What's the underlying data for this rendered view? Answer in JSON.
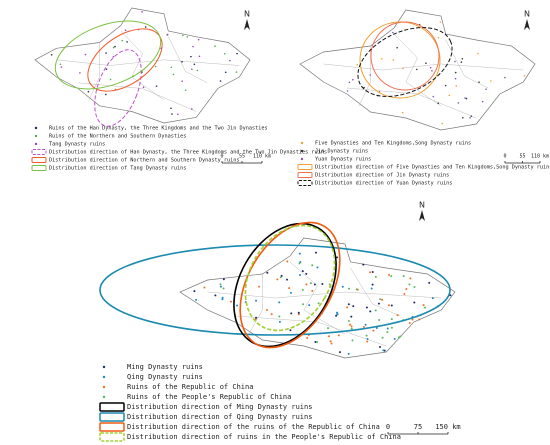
{
  "panels": [
    {
      "north": "N",
      "scale": [
        "0",
        "55",
        "110 km"
      ],
      "legend": [
        {
          "label": "Ruins of the Han Dynasty, the Three Kingdoms and the Two Jin Dynasties",
          "color": "#1f2a5a",
          "kind": "point"
        },
        {
          "label": "Ruins of the Northern and Southern Dynasties",
          "color": "#4caf50",
          "kind": "point"
        },
        {
          "label": "Tang Dynasty ruins",
          "color": "#9c3fbf",
          "kind": "point"
        },
        {
          "label": "Distribution direction of Han Dynasty, the Three Kingdoms and the Two Jin Dynasties ruins",
          "color": "#c050d0",
          "kind": "ellipse",
          "dashed": true
        },
        {
          "label": "Distribution direction of Northern and Southern Dynasty ruins",
          "color": "#f05a28",
          "kind": "ellipse",
          "dashed": false
        },
        {
          "label": "Distribution direction of Tang Dynasty ruins",
          "color": "#7cc242",
          "kind": "ellipse",
          "dashed": false
        }
      ]
    },
    {
      "north": "N",
      "scale": [
        "0",
        "55",
        "110 km"
      ],
      "legend": [
        {
          "label": "Five Dynasties and Ten Kingdoms,Song Dynasty ruins",
          "color": "#f0a030",
          "kind": "point"
        },
        {
          "label": "Jin Dynasty ruins",
          "color": "#333333",
          "kind": "point"
        },
        {
          "label": "Yuan Dynasty ruins",
          "color": "#8a4fb0",
          "kind": "point"
        },
        {
          "label": "Distribution direction of Five Dynasties and Ten Kingdoms,Song Dynasty ruins",
          "color": "#f0a030",
          "kind": "ellipse",
          "dashed": false
        },
        {
          "label": "Distribution direction of Jin Dynasty ruins",
          "color": "#f07050",
          "kind": "ellipse",
          "dashed": false
        },
        {
          "label": "Distribution direction of Yuan Dynasty ruins",
          "color": "#111111",
          "kind": "ellipse",
          "dashed": true
        }
      ]
    },
    {
      "north": "N",
      "scale": [
        "0",
        "75",
        "150 km"
      ],
      "legend": [
        {
          "label": "Ming Dynasty ruins",
          "color": "#1a2b6b",
          "kind": "point"
        },
        {
          "label": "Qing Dynasty ruins",
          "color": "#1e88c8",
          "kind": "point"
        },
        {
          "label": "Ruins of the Republic of China",
          "color": "#f07020",
          "kind": "point"
        },
        {
          "label": "Ruins of the People's Republic of China",
          "color": "#5cb85c",
          "kind": "point"
        },
        {
          "label": "Distribution direction of Ming Dynasty ruins",
          "color": "#000000",
          "kind": "ellipse",
          "dashed": false
        },
        {
          "label": "Distribution direction of Qing Dynasty ruins",
          "color": "#1a8ab0",
          "kind": "ellipse",
          "dashed": false
        },
        {
          "label": "Distribution direction of the ruins of the Republic of China",
          "color": "#f05a10",
          "kind": "ellipse",
          "dashed": false
        },
        {
          "label": "Distribution direction of ruins in the People's Republic of China",
          "color": "#a0d030",
          "kind": "ellipse",
          "dashed": true
        }
      ]
    }
  ]
}
